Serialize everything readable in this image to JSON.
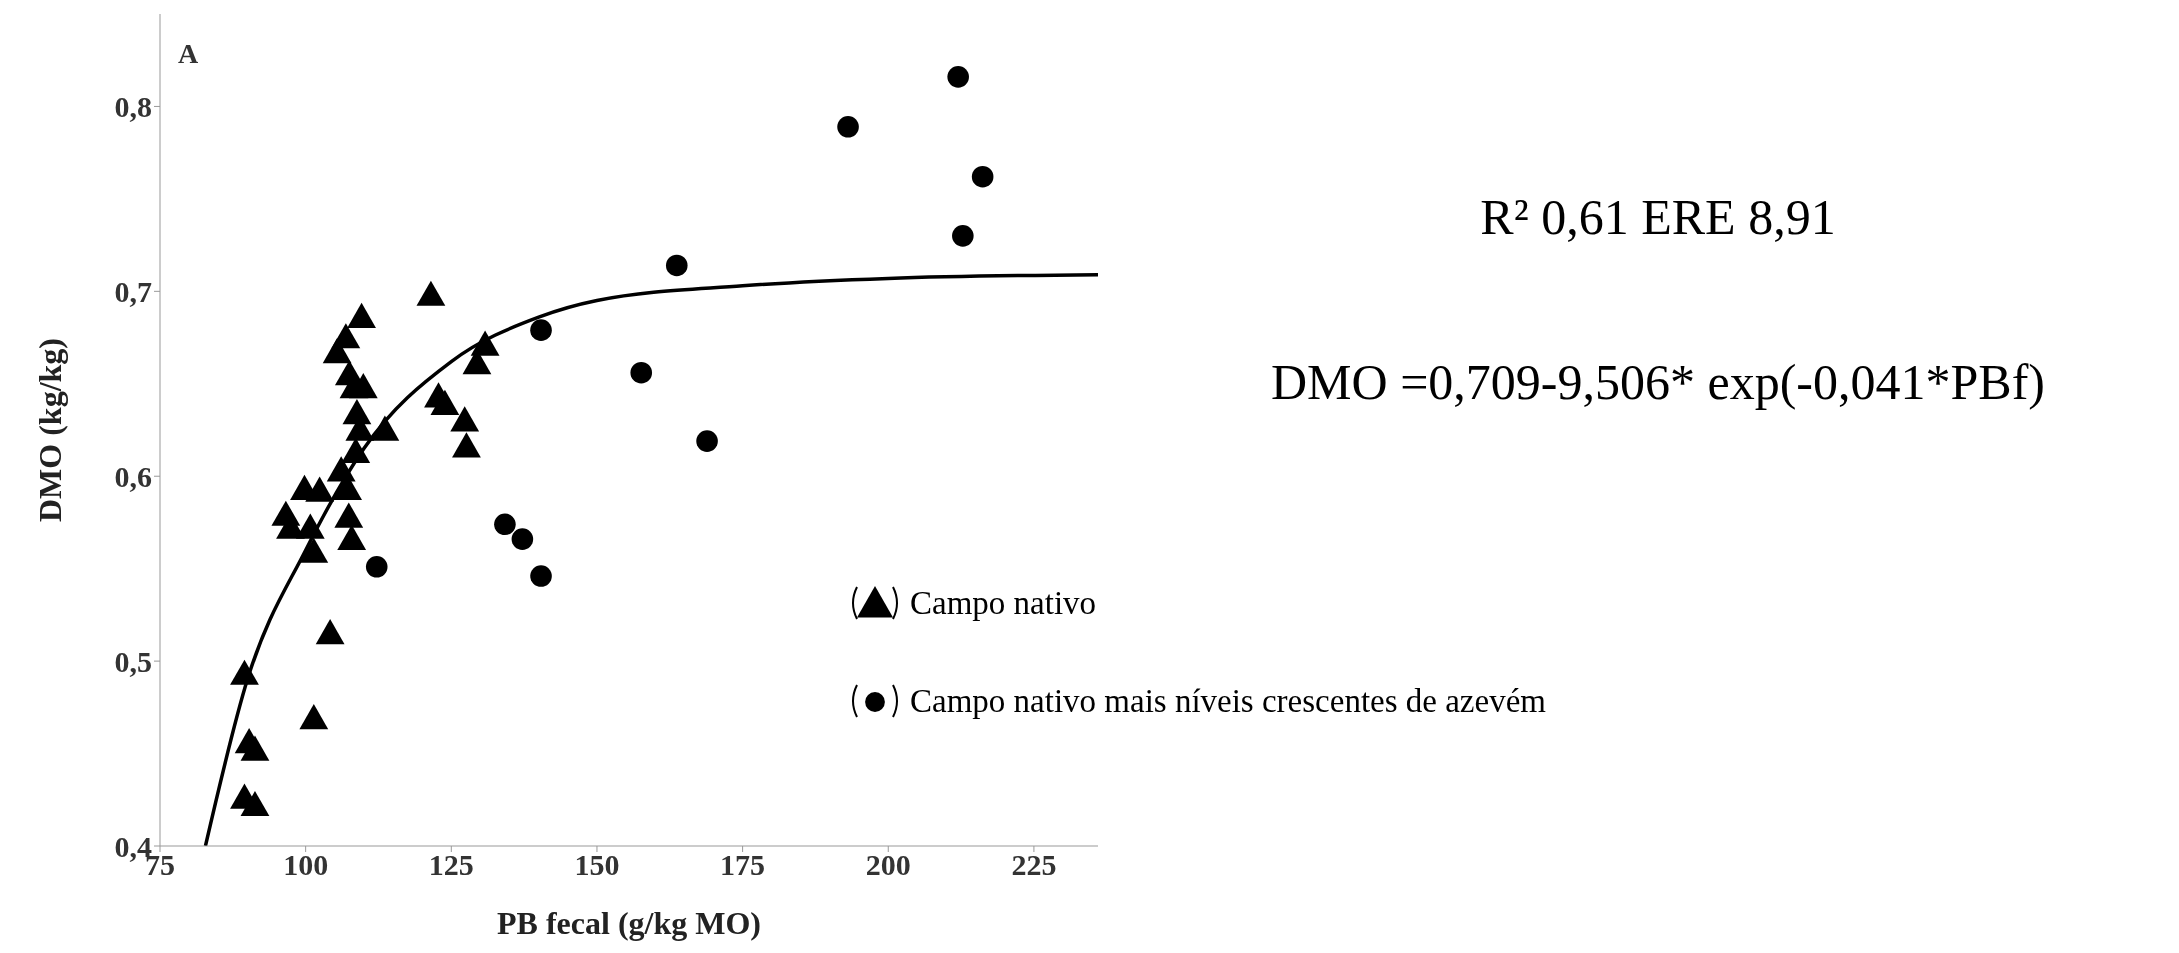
{
  "chart_data": {
    "type": "scatter",
    "xlabel": "PB fecal (g/kg MO)",
    "ylabel": "DMO (kg/kg)",
    "xlim": [
      75,
      236
    ],
    "xticks": [
      75,
      100,
      125,
      150,
      175,
      200,
      225
    ],
    "ylim": [
      0.4,
      0.85
    ],
    "yticks": [
      {
        "value": 0.4,
        "label": "0,4"
      },
      {
        "value": 0.5,
        "label": "0,5"
      },
      {
        "value": 0.6,
        "label": "0,6"
      },
      {
        "value": 0.7,
        "label": "0,7"
      },
      {
        "value": 0.8,
        "label": "0,8"
      }
    ],
    "grid": false,
    "legend": "right",
    "annotations": [
      "A",
      "R² 0,61 ERE 8,91",
      "DMO =0,709-9,506* exp(-0,041*PBf)"
    ],
    "series": [
      {
        "name": "Campo nativo",
        "marker": "triangle",
        "color": "#000000",
        "x": [
          89.5,
          90.3,
          91.3,
          89.5,
          91.3,
          101.4,
          104.2,
          96.6,
          97.4,
          99.8,
          102.4,
          100.8,
          101.4,
          105.4,
          106.9,
          109.6,
          107.5,
          108.3,
          109.9,
          108.8,
          109.3,
          108.6,
          106.1,
          107.2,
          107.4,
          107.9,
          113.6,
          121.5,
          122.8,
          123.9,
          127.3,
          127.6,
          129.4,
          130.8
        ],
        "values": [
          0.493,
          0.456,
          0.452,
          0.426,
          0.422,
          0.469,
          0.515,
          0.579,
          0.572,
          0.593,
          0.592,
          0.572,
          0.559,
          0.667,
          0.675,
          0.686,
          0.655,
          0.648,
          0.648,
          0.634,
          0.625,
          0.613,
          0.603,
          0.593,
          0.578,
          0.566,
          0.625,
          0.698,
          0.643,
          0.639,
          0.63,
          0.616,
          0.661,
          0.671
        ]
      },
      {
        "name": "Campo nativo mais níveis crescentes de azevém",
        "marker": "circle",
        "color": "#000000",
        "x": [
          112.2,
          134.2,
          137.2,
          140.4,
          140.4,
          163.7,
          157.6,
          168.9,
          193.1,
          212.0,
          216.2,
          212.8
        ],
        "values": [
          0.551,
          0.574,
          0.566,
          0.546,
          0.679,
          0.714,
          0.656,
          0.619,
          0.789,
          0.816,
          0.762,
          0.73
        ]
      },
      {
        "type": "line",
        "marker": "none",
        "line_style": "solid",
        "color": "#000000",
        "x": [
          82.8,
          90,
          100,
          110,
          125,
          140,
          150,
          175,
          200,
          236
        ],
        "values": [
          0.4,
          0.49,
          0.56,
          0.615,
          0.662,
          0.686,
          0.695,
          0.703,
          0.707,
          0.709
        ]
      }
    ]
  }
}
